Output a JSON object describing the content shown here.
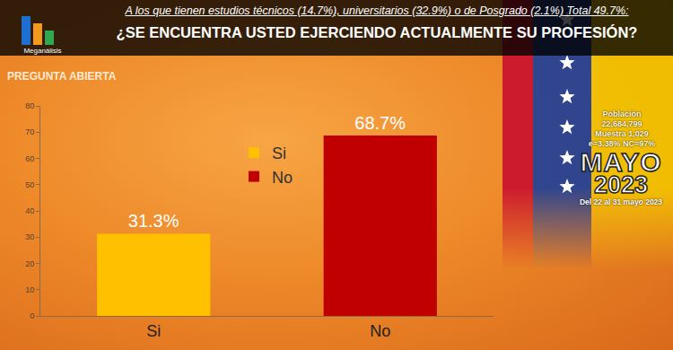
{
  "chart_data": {
    "type": "bar",
    "title": "¿SE ENCUENTRA USTED EJERCIENDO ACTUALMENTE SU PROFESIÓN?",
    "subtitle": "A los que tienen estudios técnicos (14.7%), universitarios (32.9%) o de Posgrado (2.1%) Total 49.7%:",
    "categories": [
      "Si",
      "No"
    ],
    "values": [
      31.3,
      68.7
    ],
    "value_labels": [
      "31.3%",
      "68.7%"
    ],
    "colors": [
      "#ffc000",
      "#c00000"
    ],
    "ylim": [
      0,
      80
    ],
    "yticks": [
      0,
      10,
      20,
      30,
      40,
      50,
      60,
      70,
      80
    ],
    "grid": false,
    "legend": "center",
    "data_labels": true,
    "annotations": [
      "Meganálisis",
      "PREGUNTA ABIERTA",
      "Población",
      "22,684,799",
      "Muestra 1,029",
      "e=3.38% NC=97%",
      "MAYO",
      "2023",
      "Del 22 al 31 mayo 2023"
    ]
  }
}
